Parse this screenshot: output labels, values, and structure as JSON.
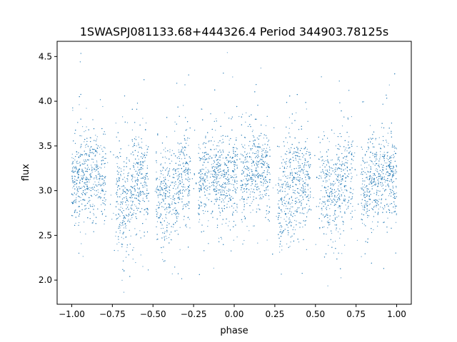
{
  "chart_data": {
    "type": "scatter",
    "title": "1SWASPJ081133.68+444326.4 Period 344903.78125s",
    "xlabel": "phase",
    "ylabel": "flux",
    "xlim": [
      -1.09,
      1.09
    ],
    "ylim": [
      1.73,
      4.67
    ],
    "xticks": [
      -1.0,
      -0.75,
      -0.5,
      -0.25,
      0.0,
      0.25,
      0.5,
      0.75,
      1.0
    ],
    "xtick_labels": [
      "−1.00",
      "−0.75",
      "−0.50",
      "−0.25",
      "0.00",
      "0.25",
      "0.50",
      "0.75",
      "1.00"
    ],
    "yticks": [
      2.0,
      2.5,
      3.0,
      3.5,
      4.0,
      4.5
    ],
    "ytick_labels": [
      "2.0",
      "2.5",
      "3.0",
      "3.5",
      "4.0",
      "4.5"
    ],
    "grid": false,
    "legend": "none",
    "marker_color": "#1f77b4",
    "series": [
      {
        "x_range": [
          -1.0,
          1.0
        ],
        "point_count_approx": 60000,
        "phase_folded_profile": [
          {
            "x": -1.0,
            "median": 3.05,
            "low": 2.7,
            "high": 3.4
          },
          {
            "x": -0.9,
            "median": 3.2,
            "low": 2.8,
            "high": 3.6
          },
          {
            "x": -0.8,
            "median": 3.15,
            "low": 2.75,
            "high": 3.45
          },
          {
            "x": -0.75,
            "median": 3.0,
            "low": 2.55,
            "high": 3.35
          },
          {
            "x": -0.68,
            "median": 2.85,
            "low": 2.3,
            "high": 3.3
          },
          {
            "x": -0.6,
            "median": 3.15,
            "low": 2.7,
            "high": 3.5
          },
          {
            "x": -0.5,
            "median": 3.0,
            "low": 2.6,
            "high": 3.4
          },
          {
            "x": -0.4,
            "median": 2.9,
            "low": 2.4,
            "high": 3.4
          },
          {
            "x": -0.3,
            "median": 3.2,
            "low": 2.8,
            "high": 3.6
          },
          {
            "x": -0.25,
            "median": 3.05,
            "low": 2.7,
            "high": 3.4
          },
          {
            "x": -0.15,
            "median": 3.2,
            "low": 2.8,
            "high": 3.55
          },
          {
            "x": -0.05,
            "median": 3.1,
            "low": 2.7,
            "high": 3.45
          },
          {
            "x": 0.05,
            "median": 3.15,
            "low": 2.75,
            "high": 3.55
          },
          {
            "x": 0.1,
            "median": 3.25,
            "low": 2.85,
            "high": 3.65
          },
          {
            "x": 0.2,
            "median": 3.2,
            "low": 2.8,
            "high": 3.5
          },
          {
            "x": 0.3,
            "median": 2.85,
            "low": 2.3,
            "high": 3.3
          },
          {
            "x": 0.4,
            "median": 3.15,
            "low": 2.7,
            "high": 3.5
          },
          {
            "x": 0.5,
            "median": 3.05,
            "low": 2.65,
            "high": 3.4
          },
          {
            "x": 0.6,
            "median": 2.9,
            "low": 2.4,
            "high": 3.4
          },
          {
            "x": 0.7,
            "median": 3.25,
            "low": 2.85,
            "high": 3.65
          },
          {
            "x": 0.8,
            "median": 3.0,
            "low": 2.65,
            "high": 3.35
          },
          {
            "x": 0.9,
            "median": 3.2,
            "low": 2.8,
            "high": 3.6
          },
          {
            "x": 1.0,
            "median": 3.15,
            "low": 2.75,
            "high": 3.5
          }
        ]
      }
    ]
  }
}
